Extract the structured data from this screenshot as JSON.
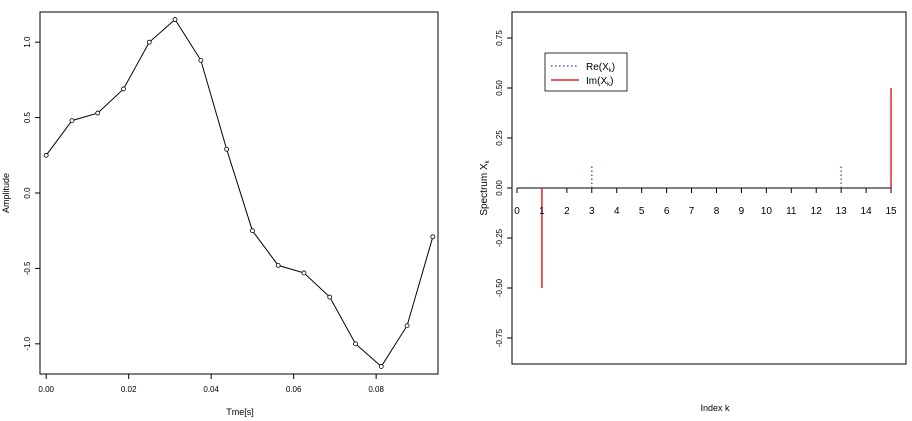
{
  "chart_data": [
    {
      "type": "line",
      "title": "",
      "xlabel": "Tme[s]",
      "ylabel": "Amplitude",
      "xlim": [
        -0.0015,
        0.095
      ],
      "ylim": [
        -1.2,
        1.2
      ],
      "xticks": [
        0.0,
        0.02,
        0.04,
        0.06,
        0.08
      ],
      "xtick_labels": [
        "0.00",
        "0.02",
        "0.04",
        "0.06",
        "0.08"
      ],
      "yticks": [
        -1.0,
        -0.5,
        0.0,
        0.5,
        1.0
      ],
      "ytick_labels": [
        "-1.0",
        "-0.5",
        "0.0",
        "0.5",
        "1.0"
      ],
      "grid": false,
      "line_color": "#000000",
      "series": [
        {
          "x": [
            0.0,
            0.00625,
            0.0125,
            0.01875,
            0.025,
            0.03125,
            0.0375,
            0.04375,
            0.05,
            0.05625,
            0.0625,
            0.06875,
            0.075,
            0.08125,
            0.0875,
            0.09375
          ],
          "y": [
            0.25,
            0.48,
            0.53,
            0.69,
            1.0,
            1.15,
            0.88,
            0.29,
            -0.25,
            -0.48,
            -0.53,
            -0.69,
            -1.0,
            -1.15,
            -0.88,
            -0.29
          ]
        }
      ]
    },
    {
      "type": "stem",
      "title": "",
      "xlabel": "Index k",
      "ylabel_main": "Spectrum X",
      "ylabel_sub": "k",
      "xlim": [
        -0.2,
        15.6
      ],
      "ylim": [
        -0.88,
        0.88
      ],
      "yticks": [
        -0.75,
        -0.5,
        -0.25,
        0.0,
        0.25,
        0.5,
        0.75
      ],
      "ytick_labels": [
        "-0.75",
        "-0.50",
        "-0.25",
        "0.00",
        "0.25",
        "0.50",
        "0.75"
      ],
      "index_labels": [
        "0",
        "1",
        "2",
        "3",
        "4",
        "5",
        "6",
        "7",
        "8",
        "9",
        "10",
        "11",
        "12",
        "13",
        "14",
        "15"
      ],
      "grid": false,
      "legend_placement": "top-left",
      "series": [
        {
          "name_main": "Re(X",
          "name_sub": "k",
          "name_end": ")",
          "color": "#4f62c9",
          "style": "dotted",
          "values": [
            0,
            0,
            0,
            0.12,
            0,
            0,
            0,
            0,
            0,
            0,
            0,
            0,
            0,
            0.12,
            0,
            0
          ]
        },
        {
          "name_main": "Im(X",
          "name_sub": "k",
          "name_end": ")",
          "color": "#e8232a",
          "style": "solid",
          "values": [
            0,
            -0.5,
            0,
            0,
            0,
            0,
            0,
            0,
            0,
            0,
            0,
            0,
            0,
            0,
            0,
            0.5
          ]
        }
      ]
    }
  ]
}
